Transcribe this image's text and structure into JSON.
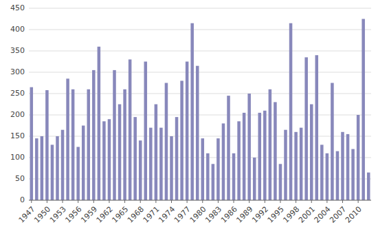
{
  "chart_data": {
    "type": "bar",
    "categories": [
      "1947",
      null,
      null,
      "1950",
      null,
      null,
      "1953",
      null,
      null,
      "1956",
      null,
      null,
      "1959",
      null,
      null,
      "1962",
      null,
      null,
      "1965",
      null,
      null,
      "1968",
      null,
      null,
      "1971",
      null,
      null,
      "1974",
      null,
      null,
      "1977",
      null,
      null,
      "1980",
      null,
      null,
      "1983",
      null,
      null,
      "1986",
      null,
      null,
      "1989",
      null,
      null,
      "1992",
      null,
      null,
      "1995",
      null,
      null,
      "1998",
      null,
      null,
      "2001",
      null,
      null,
      "2004",
      null,
      null,
      "2007",
      null,
      null,
      "2010",
      null,
      null
    ],
    "values": [
      265,
      145,
      150,
      258,
      130,
      150,
      165,
      285,
      260,
      125,
      175,
      260,
      305,
      360,
      185,
      190,
      305,
      225,
      260,
      330,
      195,
      140,
      325,
      170,
      225,
      170,
      275,
      150,
      195,
      280,
      325,
      415,
      315,
      145,
      110,
      85,
      145,
      180,
      245,
      110,
      185,
      205,
      250,
      100,
      205,
      210,
      260,
      230,
      85,
      165,
      415,
      160,
      170,
      335,
      225,
      340,
      130,
      110,
      275,
      115,
      160,
      155,
      120,
      200,
      425,
      65
    ],
    "color": "#8888bb",
    "ylim": [
      0,
      450
    ],
    "yticks": [
      0,
      50,
      100,
      150,
      200,
      250,
      300,
      350,
      400,
      450
    ],
    "grid": true
  }
}
